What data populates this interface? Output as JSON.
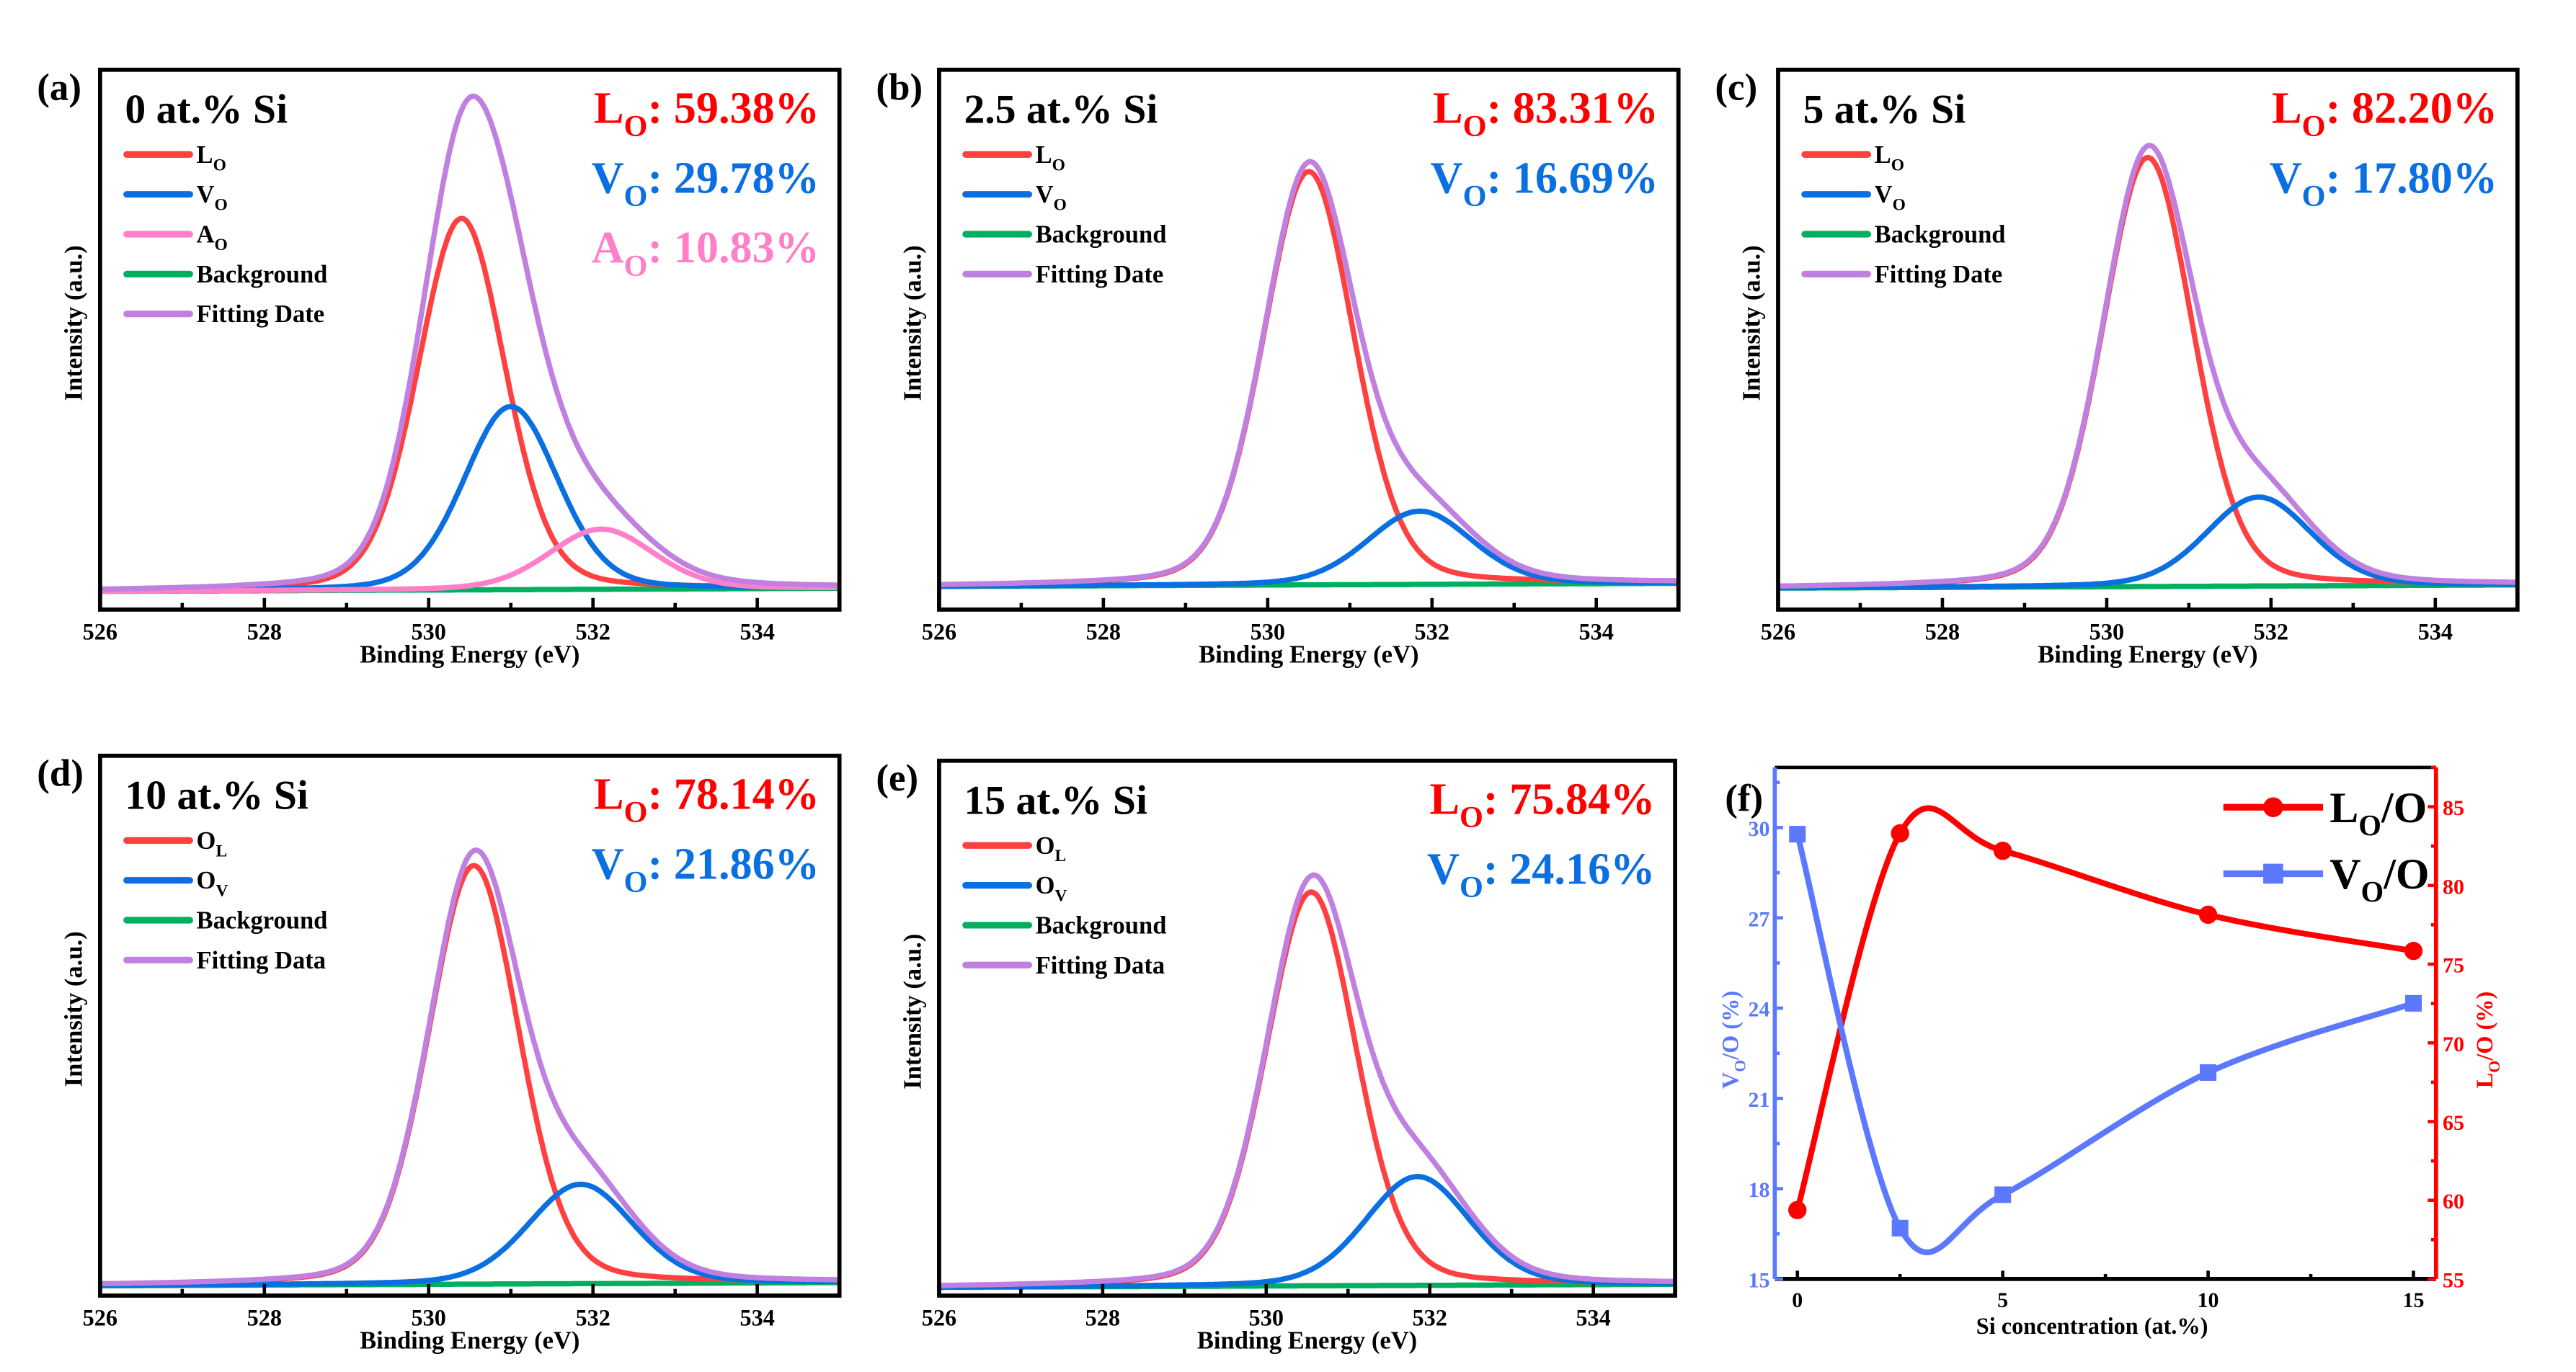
{
  "chart_data": [
    {
      "type": "line",
      "panel_label": "(a)",
      "title": "0 at.% Si",
      "xlabel": "Binding Energy (eV)",
      "ylabel": "Intensity (a.u.)",
      "xlim": [
        526,
        535
      ],
      "xticks": [
        526,
        528,
        530,
        532,
        534
      ],
      "annotations": [
        {
          "main": "L",
          "sub": "O",
          "value": ": 59.38%",
          "color": "#ff0000"
        },
        {
          "main": "V",
          "sub": "O",
          "value": ": 29.78%",
          "color": "#0a6fe0"
        },
        {
          "main": "A",
          "sub": "O",
          "value": ": 10.83%",
          "color": "#ff80c8"
        }
      ],
      "legend": [
        {
          "main": "L",
          "sub": "O",
          "color": "#ff4040"
        },
        {
          "main": "V",
          "sub": "O",
          "color": "#0a6fe0"
        },
        {
          "main": "A",
          "sub": "O",
          "color": "#ff80c8"
        },
        {
          "main": "Background",
          "sub": "",
          "color": "#00b060"
        },
        {
          "main": "Fitting Date",
          "sub": "",
          "color": "#c080e0"
        }
      ],
      "components": [
        {
          "name": "LO",
          "center": 530.4,
          "amplitude": 71,
          "fwhm": 1.25
        },
        {
          "name": "VO",
          "center": 531.0,
          "amplitude": 35,
          "fwhm": 1.35
        },
        {
          "name": "AO",
          "center": 532.1,
          "amplitude": 11.5,
          "fwhm": 1.5
        }
      ]
    },
    {
      "type": "line",
      "panel_label": "(b)",
      "title": "2.5 at.% Si",
      "xlabel": "Binding Energy (eV)",
      "ylabel": "Intensity (a.u.)",
      "xlim": [
        526,
        535
      ],
      "xticks": [
        526,
        528,
        530,
        532,
        534
      ],
      "annotations": [
        {
          "main": "L",
          "sub": "O",
          "value": ": 83.31%",
          "color": "#ff0000"
        },
        {
          "main": "V",
          "sub": "O",
          "value": ": 16.69%",
          "color": "#0a6fe0"
        }
      ],
      "legend": [
        {
          "main": "L",
          "sub": "O",
          "color": "#ff4040"
        },
        {
          "main": "V",
          "sub": "O",
          "color": "#0a6fe0"
        },
        {
          "main": "Background",
          "sub": "",
          "color": "#00b060"
        },
        {
          "main": "Fitting Date",
          "sub": "",
          "color": "#c080e0"
        }
      ],
      "components": [
        {
          "name": "LO",
          "center": 530.5,
          "amplitude": 79,
          "fwhm": 1.3
        },
        {
          "name": "VO",
          "center": 531.85,
          "amplitude": 14,
          "fwhm": 1.5
        }
      ]
    },
    {
      "type": "line",
      "panel_label": "(c)",
      "title": "5 at.% Si",
      "xlabel": "Binding Energy (eV)",
      "ylabel": "Intensity (a.u.)",
      "xlim": [
        526,
        535
      ],
      "xticks": [
        526,
        528,
        530,
        532,
        534
      ],
      "annotations": [
        {
          "main": "L",
          "sub": "O",
          "value": ": 82.20%",
          "color": "#ff0000"
        },
        {
          "main": "V",
          "sub": "O",
          "value": ": 17.80%",
          "color": "#0a6fe0"
        }
      ],
      "legend": [
        {
          "main": "L",
          "sub": "O",
          "color": "#ff4040"
        },
        {
          "main": "V",
          "sub": "O",
          "color": "#0a6fe0"
        },
        {
          "main": "Background",
          "sub": "",
          "color": "#00b060"
        },
        {
          "main": "Fitting Date",
          "sub": "",
          "color": "#c080e0"
        }
      ],
      "components": [
        {
          "name": "LO",
          "center": 530.5,
          "amplitude": 82,
          "fwhm": 1.3
        },
        {
          "name": "VO",
          "center": 531.85,
          "amplitude": 17,
          "fwhm": 1.5
        }
      ]
    },
    {
      "type": "line",
      "panel_label": "(d)",
      "title": "10 at.% Si",
      "xlabel": "Binding Energy (eV)",
      "ylabel": "Intensity (a.u.)",
      "xlim": [
        526,
        535
      ],
      "xticks": [
        526,
        528,
        530,
        532,
        534
      ],
      "annotations": [
        {
          "main": "L",
          "sub": "O",
          "value": ": 78.14%",
          "color": "#ff0000"
        },
        {
          "main": "V",
          "sub": "O",
          "value": ": 21.86%",
          "color": "#0a6fe0"
        }
      ],
      "legend": [
        {
          "main": "O",
          "sub": "L",
          "color": "#ff4040"
        },
        {
          "main": "O",
          "sub": "V",
          "color": "#0a6fe0"
        },
        {
          "main": "Background",
          "sub": "",
          "color": "#00b060"
        },
        {
          "main": "Fitting Data",
          "sub": "",
          "color": "#c080e0"
        }
      ],
      "components": [
        {
          "name": "OL",
          "center": 530.55,
          "amplitude": 80,
          "fwhm": 1.3
        },
        {
          "name": "OV",
          "center": 531.85,
          "amplitude": 19,
          "fwhm": 1.5
        }
      ]
    },
    {
      "type": "line",
      "panel_label": "(e)",
      "title": "15 at.% Si",
      "xlabel": "Binding Energy (eV)",
      "ylabel": "Intensity (a.u.)",
      "xlim": [
        526,
        535
      ],
      "xticks": [
        526,
        528,
        530,
        532,
        534
      ],
      "annotations": [
        {
          "main": "L",
          "sub": "O",
          "value": ": 75.84%",
          "color": "#ff0000"
        },
        {
          "main": "V",
          "sub": "O",
          "value": ": 24.16%",
          "color": "#0a6fe0"
        }
      ],
      "legend": [
        {
          "main": "O",
          "sub": "L",
          "color": "#ff4040"
        },
        {
          "main": "O",
          "sub": "V",
          "color": "#0a6fe0"
        },
        {
          "main": "Background",
          "sub": "",
          "color": "#00b060"
        },
        {
          "main": "Fitting Data",
          "sub": "",
          "color": "#c080e0"
        }
      ],
      "components": [
        {
          "name": "OL",
          "center": 530.55,
          "amplitude": 76,
          "fwhm": 1.3
        },
        {
          "name": "OV",
          "center": 531.85,
          "amplitude": 21,
          "fwhm": 1.5
        }
      ]
    },
    {
      "type": "line",
      "panel_label": "(f)",
      "xlabel": "Si concentration (at.%)",
      "ylabel_left": {
        "main": "V",
        "sub": "O",
        "value": "/O (%)",
        "color": "#5b78ff"
      },
      "ylabel_right": {
        "main": "L",
        "sub": "O",
        "value": "/O (%)",
        "color": "#ff0000"
      },
      "xlim": [
        -0.55,
        15.55
      ],
      "xticks": [
        0,
        5,
        10,
        15
      ],
      "ylim_left": [
        15,
        32
      ],
      "yticks_left": [
        15,
        18,
        21,
        24,
        27,
        30
      ],
      "ylim_right": [
        55,
        87.5
      ],
      "yticks_right": [
        55,
        60,
        65,
        70,
        75,
        80,
        85
      ],
      "legend_placement": "top-right",
      "x": [
        0,
        2.5,
        5,
        10,
        15
      ],
      "series": [
        {
          "name": "LO/O",
          "main": "L",
          "sub": "O",
          "suffix": "/O",
          "axis": "right",
          "marker": "circle",
          "color": "#ff0000",
          "values": [
            59.38,
            83.31,
            82.2,
            78.14,
            75.84
          ]
        },
        {
          "name": "VO/O",
          "main": "V",
          "sub": "O",
          "suffix": "/O",
          "axis": "left",
          "marker": "square",
          "color": "#5b78ff",
          "values": [
            29.78,
            16.69,
            17.8,
            21.86,
            24.16
          ]
        }
      ]
    }
  ]
}
